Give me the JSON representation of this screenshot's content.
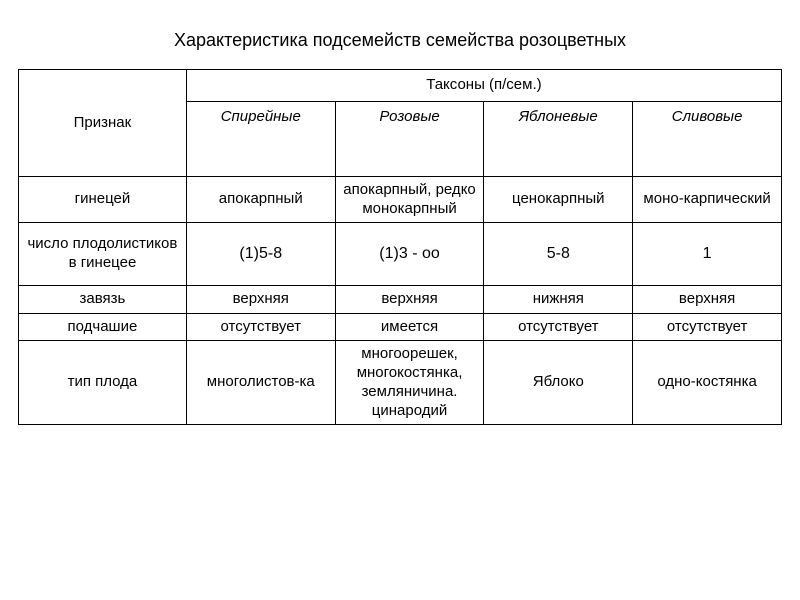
{
  "title": "Характеристика подсемейств семейства розоцветных",
  "table": {
    "header": {
      "attribute_label": "Признак",
      "group_label": "Таксоны (п/сем.)",
      "taxa": [
        "Спирейные",
        "Розовые",
        "Яблоневые",
        "Сливовые"
      ]
    },
    "rows": [
      {
        "attr": "гинецей",
        "cells": [
          "апокарпный",
          "апокарпный, редко монокарпный",
          "ценокарпный",
          "моно-карпический"
        ]
      },
      {
        "attr": "число плодолистиков в гинецее",
        "cells": [
          "(1)5-8",
          "(1)3 - оо",
          "5-8",
          "1"
        ]
      },
      {
        "attr": "завязь",
        "cells": [
          "верхняя",
          "верхняя",
          "нижняя",
          "верхняя"
        ]
      },
      {
        "attr": "подчашие",
        "cells": [
          "отсутствует",
          "имеется",
          "отсутствует",
          "отсутствует"
        ]
      },
      {
        "attr": "тип плода",
        "cells": [
          "многолистов-ка",
          "многоорешек, многокостянка, земляничина. цинародий",
          "Яблоко",
          "одно-костянка"
        ]
      }
    ]
  },
  "style": {
    "font_family": "Arial",
    "title_fontsize": 18,
    "cell_fontsize": 15,
    "border_color": "#000000",
    "background_color": "#ffffff",
    "text_color": "#000000",
    "column_widths": [
      "22%",
      "19.5%",
      "19.5%",
      "19.5%",
      "19.5%"
    ]
  }
}
